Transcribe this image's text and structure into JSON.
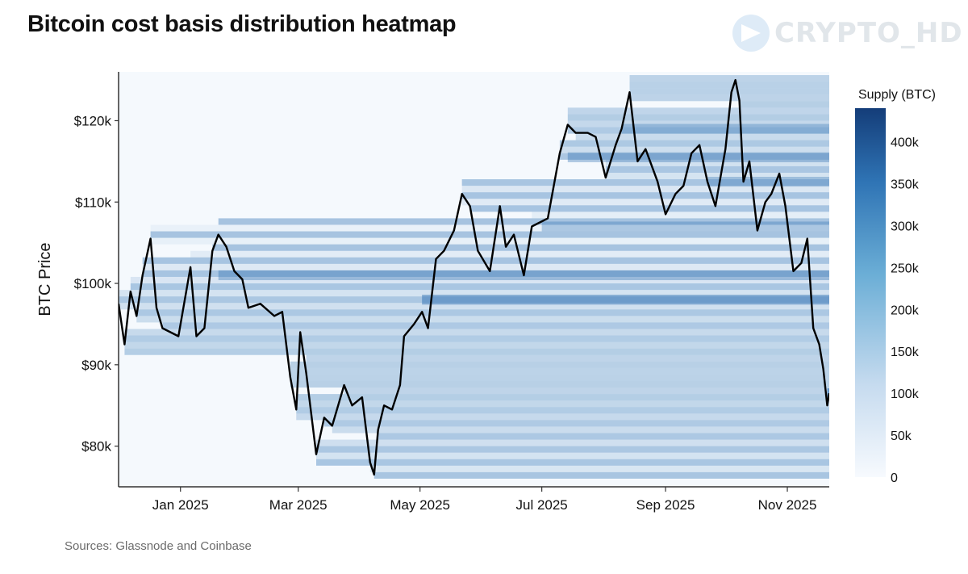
{
  "title": "Bitcoin cost basis distribution heatmap",
  "watermark": {
    "icon": "telegram-plane-icon",
    "text": "CRYPTO_HD"
  },
  "source": "Sources: Glassnode and Coinbase",
  "colors": {
    "line": "#000000",
    "scale_low": "#f4f8fd",
    "scale_high": "#143d79",
    "axis": "#333333"
  },
  "chart_data": {
    "type": "heatmap",
    "title": "Bitcoin cost basis distribution heatmap",
    "xlabel": "",
    "ylabel": "BTC Price",
    "x_range": [
      "2024-12-01",
      "2025-11-22"
    ],
    "ylim": [
      75000,
      126000
    ],
    "x_ticks": [
      {
        "date": "2025-01-01",
        "label": "Jan 2025"
      },
      {
        "date": "2025-03-01",
        "label": "Mar 2025"
      },
      {
        "date": "2025-05-01",
        "label": "May 2025"
      },
      {
        "date": "2025-07-01",
        "label": "Jul 2025"
      },
      {
        "date": "2025-09-01",
        "label": "Sep 2025"
      },
      {
        "date": "2025-11-01",
        "label": "Nov 2025"
      }
    ],
    "y_ticks": [
      {
        "value": 80000,
        "label": "$80k"
      },
      {
        "value": 90000,
        "label": "$90k"
      },
      {
        "value": 100000,
        "label": "$100k"
      },
      {
        "value": 110000,
        "label": "$110k"
      },
      {
        "value": 120000,
        "label": "$120k"
      }
    ],
    "colorbar": {
      "title": "Supply (BTC)",
      "range": [
        0,
        440000
      ],
      "ticks": [
        {
          "value": 0,
          "label": "0"
        },
        {
          "value": 50000,
          "label": "50k"
        },
        {
          "value": 100000,
          "label": "100k"
        },
        {
          "value": 150000,
          "label": "150k"
        },
        {
          "value": 200000,
          "label": "200k"
        },
        {
          "value": 250000,
          "label": "250k"
        },
        {
          "value": 300000,
          "label": "300k"
        },
        {
          "value": 350000,
          "label": "350k"
        },
        {
          "value": 400000,
          "label": "400k"
        }
      ]
    },
    "price_series": {
      "name": "BTC price",
      "points": [
        [
          "2024-12-01",
          97500
        ],
        [
          "2024-12-04",
          92500
        ],
        [
          "2024-12-07",
          99000
        ],
        [
          "2024-12-10",
          96000
        ],
        [
          "2024-12-13",
          101000
        ],
        [
          "2024-12-17",
          105500
        ],
        [
          "2024-12-20",
          97000
        ],
        [
          "2024-12-23",
          94500
        ],
        [
          "2024-12-27",
          94000
        ],
        [
          "2024-12-31",
          93500
        ],
        [
          "2025-01-06",
          102000
        ],
        [
          "2025-01-09",
          93500
        ],
        [
          "2025-01-13",
          94500
        ],
        [
          "2025-01-17",
          104000
        ],
        [
          "2025-01-20",
          106000
        ],
        [
          "2025-01-24",
          104500
        ],
        [
          "2025-01-28",
          101500
        ],
        [
          "2025-02-01",
          100500
        ],
        [
          "2025-02-04",
          97000
        ],
        [
          "2025-02-10",
          97500
        ],
        [
          "2025-02-17",
          96000
        ],
        [
          "2025-02-21",
          96500
        ],
        [
          "2025-02-25",
          88500
        ],
        [
          "2025-02-28",
          84500
        ],
        [
          "2025-03-02",
          94000
        ],
        [
          "2025-03-05",
          89000
        ],
        [
          "2025-03-10",
          79000
        ],
        [
          "2025-03-14",
          83500
        ],
        [
          "2025-03-18",
          82500
        ],
        [
          "2025-03-24",
          87500
        ],
        [
          "2025-03-28",
          85000
        ],
        [
          "2025-04-02",
          86000
        ],
        [
          "2025-04-06",
          78000
        ],
        [
          "2025-04-08",
          76500
        ],
        [
          "2025-04-10",
          82000
        ],
        [
          "2025-04-13",
          85000
        ],
        [
          "2025-04-17",
          84500
        ],
        [
          "2025-04-21",
          87500
        ],
        [
          "2025-04-23",
          93500
        ],
        [
          "2025-04-28",
          95000
        ],
        [
          "2025-05-02",
          96500
        ],
        [
          "2025-05-05",
          94500
        ],
        [
          "2025-05-09",
          103000
        ],
        [
          "2025-05-13",
          104000
        ],
        [
          "2025-05-18",
          106500
        ],
        [
          "2025-05-22",
          111000
        ],
        [
          "2025-05-26",
          109500
        ],
        [
          "2025-05-30",
          104000
        ],
        [
          "2025-06-05",
          101500
        ],
        [
          "2025-06-10",
          109500
        ],
        [
          "2025-06-13",
          104500
        ],
        [
          "2025-06-17",
          106000
        ],
        [
          "2025-06-22",
          101000
        ],
        [
          "2025-06-26",
          107000
        ],
        [
          "2025-06-30",
          107500
        ],
        [
          "2025-07-04",
          108000
        ],
        [
          "2025-07-10",
          116000
        ],
        [
          "2025-07-14",
          119500
        ],
        [
          "2025-07-18",
          118500
        ],
        [
          "2025-07-24",
          118500
        ],
        [
          "2025-07-28",
          118000
        ],
        [
          "2025-08-02",
          113000
        ],
        [
          "2025-08-07",
          117000
        ],
        [
          "2025-08-10",
          119000
        ],
        [
          "2025-08-14",
          123500
        ],
        [
          "2025-08-18",
          115000
        ],
        [
          "2025-08-22",
          116500
        ],
        [
          "2025-08-28",
          112500
        ],
        [
          "2025-09-01",
          108500
        ],
        [
          "2025-09-06",
          111000
        ],
        [
          "2025-09-10",
          112000
        ],
        [
          "2025-09-14",
          116000
        ],
        [
          "2025-09-18",
          117000
        ],
        [
          "2025-09-22",
          112500
        ],
        [
          "2025-09-26",
          109500
        ],
        [
          "2025-10-01",
          116500
        ],
        [
          "2025-10-04",
          123500
        ],
        [
          "2025-10-06",
          125000
        ],
        [
          "2025-10-08",
          122500
        ],
        [
          "2025-10-10",
          112500
        ],
        [
          "2025-10-13",
          115000
        ],
        [
          "2025-10-17",
          106500
        ],
        [
          "2025-10-21",
          110000
        ],
        [
          "2025-10-24",
          111000
        ],
        [
          "2025-10-28",
          113500
        ],
        [
          "2025-10-31",
          109500
        ],
        [
          "2025-11-04",
          101500
        ],
        [
          "2025-11-08",
          102500
        ],
        [
          "2025-11-11",
          105500
        ],
        [
          "2025-11-14",
          94500
        ],
        [
          "2025-11-17",
          92500
        ],
        [
          "2025-11-19",
          89500
        ],
        [
          "2025-11-21",
          85000
        ],
        [
          "2025-11-22",
          86500
        ]
      ]
    }
  }
}
